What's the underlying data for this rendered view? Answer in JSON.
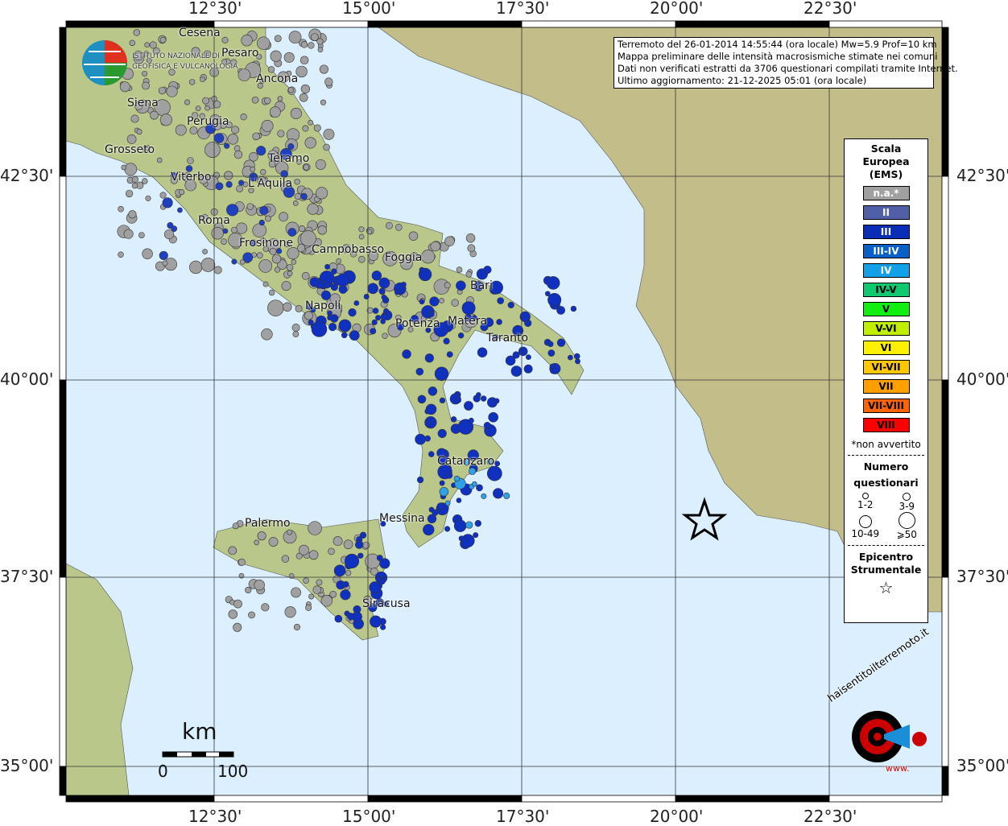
{
  "axes": {
    "lon_labels": [
      "12°30'",
      "15°00'",
      "17°30'",
      "20°00'",
      "22°30'"
    ],
    "lat_labels": [
      "42°30'",
      "40°00'",
      "37°30'",
      "35°00'"
    ]
  },
  "info": {
    "lines": [
      "Terremoto del 26-01-2014 14:55:44 (ora locale) Mw=5.9 Prof=10 km",
      "Mappa preliminare delle intensità macrosismiche stimate nei comuni",
      "Dati non verificati estratti da 3706 questionari compilati tramite Internet.",
      "Ultimo aggiornamento: 21-12-2025 05:01 (ora locale)"
    ]
  },
  "legend": {
    "title": [
      "Scala",
      "Europea",
      "(EMS)"
    ],
    "classes": [
      {
        "label": "n.a.*",
        "color": "#a0a0a0",
        "text": "#fff"
      },
      {
        "label": "II",
        "color": "#5060a8",
        "text": "#fff"
      },
      {
        "label": "III",
        "color": "#0a2db8",
        "text": "#fff"
      },
      {
        "label": "III-IV",
        "color": "#0a60c8",
        "text": "#fff"
      },
      {
        "label": "IV",
        "color": "#12a0e8",
        "text": "#fff"
      },
      {
        "label": "IV-V",
        "color": "#10c870",
        "text": "#000"
      },
      {
        "label": "V",
        "color": "#10f010",
        "text": "#000"
      },
      {
        "label": "V-VI",
        "color": "#c0f000",
        "text": "#000"
      },
      {
        "label": "VI",
        "color": "#fff000",
        "text": "#000"
      },
      {
        "label": "VI-VII",
        "color": "#ffc800",
        "text": "#000"
      },
      {
        "label": "VII",
        "color": "#ffa000",
        "text": "#000"
      },
      {
        "label": "VII-VIII",
        "color": "#ff6400",
        "text": "#000"
      },
      {
        "label": "VIII",
        "color": "#ff0000",
        "text": "#000"
      }
    ],
    "note": "*non avvertito",
    "count_title": [
      "Numero",
      "questionari"
    ],
    "sizes": [
      "1-2",
      "3-9",
      "10-49",
      "⩾50"
    ],
    "epicenter_title": [
      "Epicentro",
      "Strumentale"
    ]
  },
  "cities": [
    "Cesena",
    "Pesaro",
    "Ancona",
    "Siena",
    "Perugia",
    "Grosseto",
    "Teramo",
    "Viterbo",
    "L'Aquila",
    "Roma",
    "Frosinone",
    "Campobasso",
    "Foggia",
    "Bari",
    "Napoli",
    "Potenza",
    "Matera",
    "Taranto",
    "Catanzaro",
    "Messina",
    "Palermo",
    "Siracusa"
  ],
  "scale": {
    "unit": "km",
    "min": "0",
    "max": "100"
  },
  "logos": {
    "ingv": "ISTITUTO NAZIONALE DI GEOFISICA E VULCANOLOGIA",
    "hsit": "haisentitoilterremoto.it",
    "hsit_prefix": "www."
  },
  "colors": {
    "sea": "#dcefff",
    "land": "#b8c98a",
    "epicenter": "#000000"
  }
}
